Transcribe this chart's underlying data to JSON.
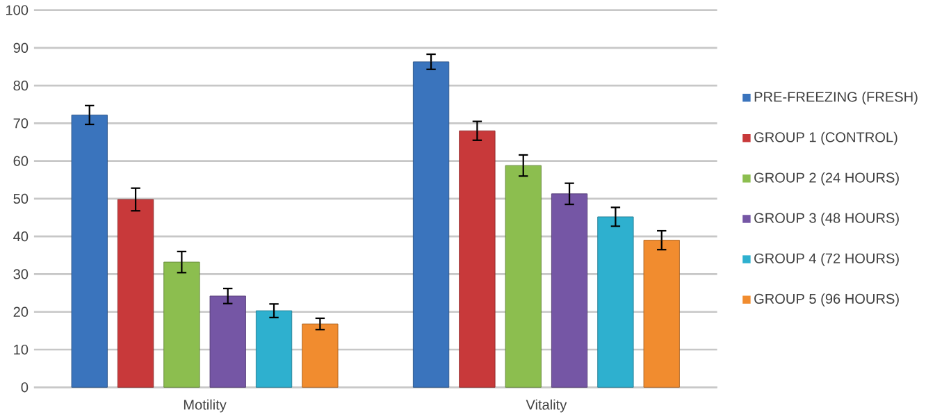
{
  "chart_data": {
    "type": "bar",
    "categories": [
      "Motility",
      "Vitality"
    ],
    "series": [
      {
        "name": "PRE-FREEZING (FRESH)",
        "color": "#3a74bd",
        "values": [
          72.2,
          86.3
        ],
        "errors": [
          2.5,
          2
        ]
      },
      {
        "name": "GROUP 1 (CONTROL)",
        "color": "#c8393a",
        "values": [
          49.8,
          68
        ],
        "errors": [
          3,
          2.5
        ]
      },
      {
        "name": "GROUP 2 (24 HOURS)",
        "color": "#8cbe4f",
        "values": [
          33.2,
          58.8
        ],
        "errors": [
          2.8,
          2.8
        ]
      },
      {
        "name": "GROUP 3 (48 HOURS)",
        "color": "#7556a5",
        "values": [
          24.2,
          51.3
        ],
        "errors": [
          2,
          2.8
        ]
      },
      {
        "name": "GROUP 4 (72 HOURS)",
        "color": "#2eb0cf",
        "values": [
          20.3,
          45.2
        ],
        "errors": [
          1.8,
          2.5
        ]
      },
      {
        "name": "GROUP 5 (96 HOURS)",
        "color": "#f18c2f",
        "values": [
          16.8,
          39
        ],
        "errors": [
          1.5,
          2.5
        ]
      }
    ],
    "ylim": [
      0,
      100
    ],
    "yticks": [
      0,
      10,
      20,
      30,
      40,
      50,
      60,
      70,
      80,
      90,
      100
    ],
    "grid": "y",
    "legend": "right"
  }
}
